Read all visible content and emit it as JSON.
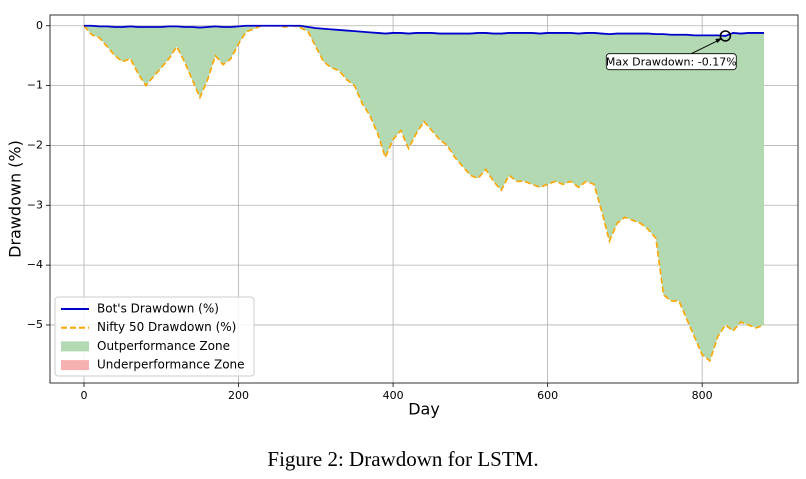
{
  "chart_data": {
    "type": "line",
    "caption": "Figure 2: Drawdown for LSTM.",
    "xlabel": "Day",
    "ylabel": "Drawdown (%)",
    "xlim": [
      -44,
      924
    ],
    "ylim": [
      -5.97,
      0.18
    ],
    "xticks": [
      0,
      200,
      400,
      600,
      800
    ],
    "yticks": [
      {
        "value": 0,
        "label": "0"
      },
      {
        "value": -1,
        "label": "−1"
      },
      {
        "value": -2,
        "label": "−2"
      },
      {
        "value": -3,
        "label": "−3"
      },
      {
        "value": -4,
        "label": "−4"
      },
      {
        "value": -5,
        "label": "−5"
      }
    ],
    "grid": true,
    "legend": "lower left",
    "x": [
      0,
      10,
      20,
      30,
      40,
      50,
      60,
      70,
      80,
      90,
      100,
      110,
      120,
      130,
      140,
      150,
      160,
      170,
      180,
      190,
      200,
      210,
      220,
      230,
      240,
      250,
      260,
      270,
      280,
      290,
      300,
      310,
      320,
      330,
      340,
      350,
      360,
      370,
      380,
      390,
      400,
      410,
      420,
      430,
      440,
      450,
      460,
      470,
      480,
      490,
      500,
      510,
      520,
      530,
      540,
      550,
      560,
      570,
      580,
      590,
      600,
      610,
      620,
      630,
      640,
      650,
      660,
      670,
      680,
      690,
      700,
      710,
      720,
      730,
      740,
      750,
      760,
      770,
      780,
      790,
      800,
      810,
      820,
      830,
      840,
      850,
      860,
      870,
      880
    ],
    "series": [
      {
        "name": "Bot's Drawdown (%)",
        "color": "#0000cd",
        "style": "solid",
        "values": [
          0,
          0,
          -0.01,
          -0.01,
          -0.02,
          -0.02,
          -0.01,
          -0.02,
          -0.02,
          -0.02,
          -0.02,
          -0.01,
          -0.01,
          -0.02,
          -0.02,
          -0.03,
          -0.02,
          -0.01,
          -0.02,
          -0.02,
          -0.01,
          0,
          0,
          0,
          0,
          0,
          0,
          0,
          0,
          -0.02,
          -0.04,
          -0.05,
          -0.06,
          -0.07,
          -0.08,
          -0.09,
          -0.1,
          -0.11,
          -0.12,
          -0.13,
          -0.12,
          -0.12,
          -0.13,
          -0.12,
          -0.12,
          -0.12,
          -0.13,
          -0.13,
          -0.13,
          -0.13,
          -0.13,
          -0.12,
          -0.12,
          -0.13,
          -0.13,
          -0.12,
          -0.12,
          -0.12,
          -0.12,
          -0.13,
          -0.12,
          -0.12,
          -0.12,
          -0.12,
          -0.13,
          -0.12,
          -0.12,
          -0.13,
          -0.14,
          -0.13,
          -0.13,
          -0.13,
          -0.13,
          -0.13,
          -0.14,
          -0.14,
          -0.15,
          -0.15,
          -0.15,
          -0.16,
          -0.16,
          -0.16,
          -0.16,
          -0.17,
          -0.12,
          -0.13,
          -0.12,
          -0.12,
          -0.12
        ]
      },
      {
        "name": "Nifty 50 Drawdown (%)",
        "color": "#ffa500",
        "style": "dashed",
        "values": [
          0,
          -0.15,
          -0.2,
          -0.35,
          -0.5,
          -0.6,
          -0.55,
          -0.8,
          -1.0,
          -0.85,
          -0.7,
          -0.55,
          -0.35,
          -0.6,
          -0.9,
          -1.2,
          -0.9,
          -0.5,
          -0.65,
          -0.55,
          -0.3,
          -0.1,
          -0.05,
          0,
          0,
          0,
          -0.02,
          0,
          -0.03,
          -0.1,
          -0.35,
          -0.6,
          -0.7,
          -0.75,
          -0.9,
          -1.0,
          -1.3,
          -1.5,
          -1.8,
          -2.2,
          -1.9,
          -1.75,
          -2.05,
          -1.8,
          -1.6,
          -1.75,
          -1.9,
          -2.0,
          -2.2,
          -2.35,
          -2.5,
          -2.55,
          -2.4,
          -2.6,
          -2.75,
          -2.5,
          -2.6,
          -2.6,
          -2.65,
          -2.7,
          -2.65,
          -2.6,
          -2.65,
          -2.6,
          -2.7,
          -2.6,
          -2.65,
          -3.1,
          -3.6,
          -3.3,
          -3.2,
          -3.25,
          -3.3,
          -3.4,
          -3.55,
          -4.5,
          -4.6,
          -4.6,
          -4.9,
          -5.2,
          -5.5,
          -5.6,
          -5.2,
          -5.0,
          -5.1,
          -4.95,
          -5.0,
          -5.05,
          -5.0
        ]
      }
    ],
    "fill_zones": [
      {
        "name": "Outperformance Zone",
        "color": "#b2d9b2"
      },
      {
        "name": "Underperformance Zone",
        "color": "#f7b0b0"
      }
    ],
    "annotation": {
      "text": "Max Drawdown: -0.17%",
      "x": 830,
      "y": -0.17,
      "text_x": 760,
      "text_y": -0.6
    }
  }
}
